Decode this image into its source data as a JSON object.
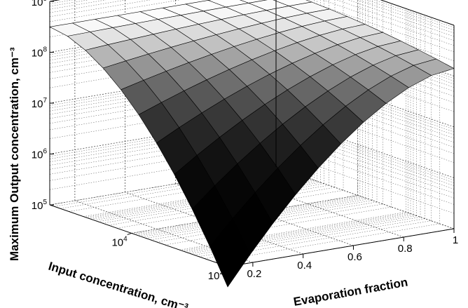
{
  "chart_data": {
    "type": "surface",
    "zlabel": "Maximum Output concentration, cm⁻³",
    "xlabel": "Evaporation fraction",
    "ylabel": "Input concentration, cm⁻³",
    "x_ticks": [
      "0.2",
      "0.4",
      "0.6",
      "0.8",
      "1"
    ],
    "y_ticks": [
      {
        "base": "10",
        "exp": "2"
      },
      {
        "base": "10",
        "exp": "4"
      }
    ],
    "z_ticks": [
      {
        "base": "10",
        "exp": "5"
      },
      {
        "base": "10",
        "exp": "6"
      },
      {
        "base": "10",
        "exp": "7"
      },
      {
        "base": "10",
        "exp": "8"
      },
      {
        "base": "10",
        "exp": "9"
      }
    ],
    "xlim": [
      0.1,
      1.0
    ],
    "ylim_log10": [
      2,
      5.7
    ],
    "zlim_log10": [
      5,
      9
    ],
    "z_scale": "log",
    "y_scale": "log",
    "grid": true,
    "colormap": "gray",
    "surface": {
      "x_range": [
        0.1,
        1.0
      ],
      "y_log10_range": [
        2,
        5.7
      ],
      "x_steps": 10,
      "y_steps": 10,
      "z_max_log10": 8.5,
      "z_min_log10": 4.6
    }
  }
}
